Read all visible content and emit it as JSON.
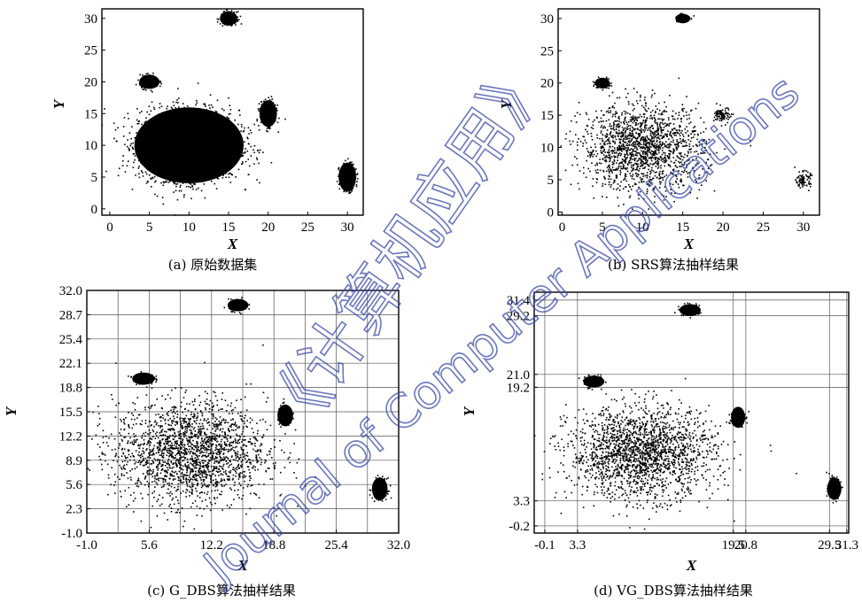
{
  "watermark": {
    "line1": "《计算机应用》",
    "line2": "Journal of Computer Applications"
  },
  "chart_data": [
    {
      "type": "scatter",
      "caption": "(a) 原始数据集",
      "xlabel": "X",
      "ylabel": "Y",
      "xlim": [
        -1,
        32
      ],
      "ylim": [
        -1,
        31.5
      ],
      "xticks": [
        0,
        5,
        10,
        15,
        20,
        25,
        30
      ],
      "yticks": [
        0,
        5,
        10,
        15,
        20,
        25,
        30
      ],
      "grid": false,
      "grid_x": [],
      "grid_y": [],
      "clusters": [
        {
          "cx": 10,
          "cy": 10,
          "rx": 7.5,
          "ry": 6.5,
          "n": 2600,
          "mode": "solid"
        },
        {
          "cx": 5,
          "cy": 20,
          "rx": 1.4,
          "ry": 1.2,
          "n": 260,
          "mode": "solid"
        },
        {
          "cx": 15,
          "cy": 30,
          "rx": 1.2,
          "ry": 1.2,
          "n": 240,
          "mode": "solid"
        },
        {
          "cx": 20,
          "cy": 15,
          "rx": 1.2,
          "ry": 2.3,
          "n": 300,
          "mode": "solid"
        },
        {
          "cx": 30,
          "cy": 5,
          "rx": 1.2,
          "ry": 2.5,
          "n": 300,
          "mode": "solid"
        }
      ]
    },
    {
      "type": "scatter",
      "caption": "(b) SRS算法抽样结果",
      "xlabel": "X",
      "ylabel": "Y",
      "xlim": [
        -0.5,
        32
      ],
      "ylim": [
        -0.5,
        31.5
      ],
      "xticks": [
        0,
        5,
        10,
        15,
        20,
        25,
        30
      ],
      "yticks": [
        0,
        5,
        10,
        15,
        20,
        25,
        30
      ],
      "grid": false,
      "grid_x": [],
      "grid_y": [],
      "clusters": [
        {
          "cx": 10,
          "cy": 10,
          "rx": 7.5,
          "ry": 6.5,
          "n": 1600,
          "mode": "sparse"
        },
        {
          "cx": 5,
          "cy": 20,
          "rx": 1.0,
          "ry": 0.9,
          "n": 140,
          "mode": "solid"
        },
        {
          "cx": 15,
          "cy": 30,
          "rx": 1.0,
          "ry": 0.8,
          "n": 120,
          "mode": "solid"
        },
        {
          "cx": 20,
          "cy": 15,
          "rx": 1.0,
          "ry": 1.2,
          "n": 90,
          "mode": "sparse"
        },
        {
          "cx": 30,
          "cy": 5,
          "rx": 0.9,
          "ry": 1.2,
          "n": 90,
          "mode": "sparse"
        }
      ]
    },
    {
      "type": "scatter",
      "caption": "(c) G_DBS算法抽样结果",
      "xlabel": "X",
      "ylabel": "Y",
      "xlim": [
        -1.0,
        32.0
      ],
      "ylim": [
        -1.0,
        32.0
      ],
      "xticks": [
        -1.0,
        5.6,
        12.2,
        18.8,
        25.4,
        32.0
      ],
      "yticks": [
        -1.0,
        2.3,
        5.6,
        8.9,
        12.2,
        15.5,
        18.8,
        22.1,
        25.4,
        28.7,
        32.0
      ],
      "grid": true,
      "grid_x": [
        2.3,
        5.6,
        8.9,
        12.2,
        15.5,
        18.8,
        22.1,
        25.4,
        28.7
      ],
      "grid_y": [
        2.3,
        5.6,
        8.9,
        12.2,
        15.5,
        18.8,
        22.1,
        25.4,
        28.7
      ],
      "clusters": [
        {
          "cx": 10,
          "cy": 10,
          "rx": 8.0,
          "ry": 6.8,
          "n": 2000,
          "mode": "sparse"
        },
        {
          "cx": 5,
          "cy": 20,
          "rx": 1.3,
          "ry": 0.9,
          "n": 150,
          "mode": "solid"
        },
        {
          "cx": 15,
          "cy": 30,
          "rx": 1.2,
          "ry": 0.9,
          "n": 150,
          "mode": "solid"
        },
        {
          "cx": 20,
          "cy": 15,
          "rx": 0.9,
          "ry": 1.6,
          "n": 150,
          "mode": "solid"
        },
        {
          "cx": 30,
          "cy": 5,
          "rx": 0.9,
          "ry": 1.7,
          "n": 150,
          "mode": "solid"
        }
      ]
    },
    {
      "type": "scatter",
      "caption": "(d) VG_DBS算法抽样结果",
      "xlabel": "X",
      "ylabel": "Y",
      "xlim": [
        -1.2,
        31.5
      ],
      "ylim": [
        -1.2,
        32.5
      ],
      "xticks": [
        -0.1,
        3.3,
        19.5,
        20.8,
        29.5,
        31.3
      ],
      "xticklabels": [
        "-0.1",
        "3.3",
        "19.5",
        "20.8",
        "29.5",
        "31.3"
      ],
      "yticks": [
        -0.2,
        3.3,
        19.2,
        21.0,
        29.2,
        31.4
      ],
      "grid": true,
      "grid_x": [
        -0.1,
        3.3,
        19.5,
        20.8,
        29.5,
        31.3
      ],
      "grid_y": [
        -0.2,
        3.3,
        19.2,
        21.0,
        29.2,
        31.4
      ],
      "clusters": [
        {
          "cx": 10,
          "cy": 10,
          "rx": 7.5,
          "ry": 6.3,
          "n": 2000,
          "mode": "sparse"
        },
        {
          "cx": 5,
          "cy": 20,
          "rx": 1.2,
          "ry": 0.9,
          "n": 140,
          "mode": "solid"
        },
        {
          "cx": 15,
          "cy": 30,
          "rx": 1.2,
          "ry": 0.9,
          "n": 140,
          "mode": "solid"
        },
        {
          "cx": 20,
          "cy": 15,
          "rx": 0.8,
          "ry": 1.6,
          "n": 140,
          "mode": "solid"
        },
        {
          "cx": 30,
          "cy": 5,
          "rx": 0.8,
          "ry": 1.7,
          "n": 140,
          "mode": "solid"
        }
      ]
    }
  ]
}
